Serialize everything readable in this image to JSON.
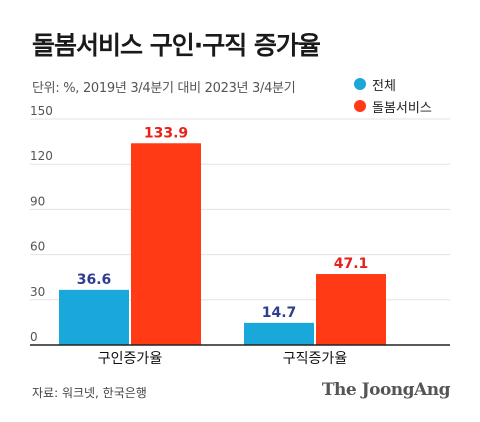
{
  "title": "돌봄서비스 구인·구직 증가율",
  "subtitle": "단위: %, 2019년 3/4분기 대비 2023년 3/4분기",
  "source": "자료: 워크넷, 한국은행",
  "brand": "The JoongAng",
  "colors": {
    "series_total": "#1aa7d9",
    "series_care": "#ff3a14",
    "axis": "#222222",
    "grid": "#e3e3e3"
  },
  "chart_data": {
    "type": "bar",
    "categories": [
      "구인증가율",
      "구직증가율"
    ],
    "series": [
      {
        "name": "전체",
        "values": [
          36.6,
          14.7
        ],
        "labels": [
          "36.6",
          "14.7"
        ],
        "color": "#1aa7d9",
        "label_color": "#2e3d8f"
      },
      {
        "name": "돌봄서비스",
        "values": [
          133.9,
          47.1
        ],
        "labels": [
          "133.9",
          "47.1"
        ],
        "color": "#ff3a14",
        "label_color": "#e8221a"
      }
    ],
    "yticks": [
      0,
      30,
      60,
      90,
      120,
      150
    ],
    "ylim": [
      0,
      150
    ],
    "grid": true,
    "legend_position": "top-right"
  }
}
